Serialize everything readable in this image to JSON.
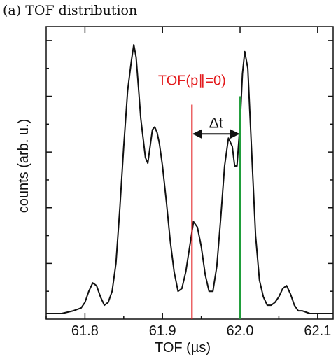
{
  "figure": {
    "caption": "(a)  TOF distribution"
  },
  "chart_data": {
    "type": "line",
    "xlabel": "TOF (µs)",
    "ylabel": "counts (arb. u.)",
    "xlim": [
      61.75,
      62.12
    ],
    "ylim": [
      0,
      1.05
    ],
    "x_ticks": [
      61.8,
      61.9,
      62.0,
      62.1
    ],
    "x_tick_labels": [
      "61.8",
      "61.9",
      "62.0",
      "62.1"
    ],
    "y_tick_labels_shown": false,
    "grid": false,
    "series": [
      {
        "color": "#111111",
        "x": [
          61.75,
          61.77,
          61.785,
          61.795,
          61.8,
          61.805,
          61.81,
          61.815,
          61.82,
          61.825,
          61.83,
          61.835,
          61.84,
          61.845,
          61.85,
          61.855,
          61.86,
          61.863,
          61.866,
          61.869,
          61.872,
          61.875,
          61.878,
          61.881,
          61.884,
          61.887,
          61.89,
          61.893,
          61.896,
          61.9,
          61.905,
          61.91,
          61.915,
          61.92,
          61.925,
          61.93,
          61.935,
          61.94,
          61.945,
          61.95,
          61.955,
          61.96,
          61.965,
          61.97,
          61.975,
          61.98,
          61.985,
          61.99,
          61.993,
          61.996,
          62.0,
          62.003,
          62.006,
          62.01,
          62.015,
          62.02,
          62.025,
          62.03,
          62.035,
          62.04,
          62.045,
          62.05,
          62.055,
          62.06,
          62.065,
          62.07,
          62.075,
          62.08,
          62.09,
          62.1,
          62.12
        ],
        "y": [
          0.02,
          0.02,
          0.03,
          0.04,
          0.06,
          0.1,
          0.13,
          0.12,
          0.08,
          0.05,
          0.06,
          0.1,
          0.2,
          0.4,
          0.62,
          0.82,
          0.93,
          0.985,
          0.94,
          0.83,
          0.72,
          0.65,
          0.58,
          0.56,
          0.62,
          0.68,
          0.69,
          0.67,
          0.63,
          0.55,
          0.42,
          0.28,
          0.17,
          0.1,
          0.11,
          0.17,
          0.26,
          0.35,
          0.33,
          0.26,
          0.16,
          0.1,
          0.1,
          0.19,
          0.36,
          0.55,
          0.65,
          0.62,
          0.55,
          0.55,
          0.7,
          0.88,
          0.96,
          0.9,
          0.6,
          0.3,
          0.14,
          0.08,
          0.05,
          0.05,
          0.06,
          0.08,
          0.11,
          0.12,
          0.09,
          0.05,
          0.03,
          0.03,
          0.02,
          0.02,
          0.02
        ]
      }
    ],
    "markers": [
      {
        "label": "TOF(p∥=0)",
        "x": 61.938,
        "color": "#e31a1c"
      },
      {
        "label": "",
        "x": 62.0,
        "color": "#1f9e3a"
      }
    ],
    "annotations": [
      {
        "text": "Δt",
        "type": "double-arrow",
        "from_x": 61.938,
        "to_x": 62.0
      }
    ]
  }
}
